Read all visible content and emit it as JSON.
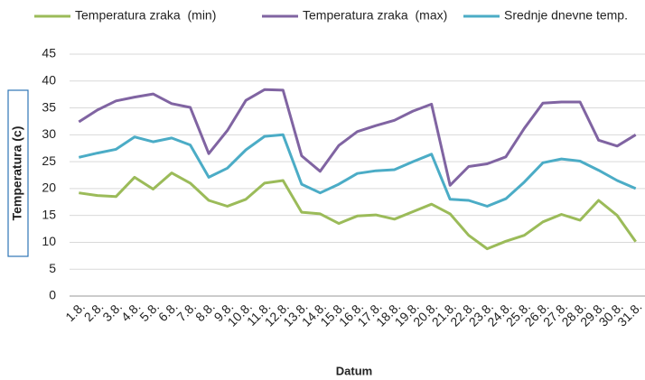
{
  "chart_data": {
    "type": "line",
    "x_label": "Datum",
    "y_label": "Temperatura (c)",
    "categories": [
      "1.8.",
      "2.8.",
      "3.8.",
      "4.8.",
      "5.8.",
      "6.8.",
      "7.8.",
      "8.8.",
      "9.8.",
      "10.8.",
      "11.8.",
      "12.8.",
      "13.8.",
      "14.8.",
      "15.8.",
      "16.8.",
      "17.8.",
      "18.8.",
      "19.8.",
      "20.8.",
      "21.8.",
      "22.8.",
      "23.8.",
      "24.8.",
      "25.8.",
      "26.8.",
      "27.8.",
      "28.8.",
      "29.8.",
      "30.8.",
      "31.8."
    ],
    "series": [
      {
        "name": "Temperatura zraka  (min)",
        "color": "#9bbb59",
        "values": [
          19.2,
          18.7,
          18.5,
          22.1,
          19.9,
          22.9,
          21.0,
          17.8,
          16.7,
          18.0,
          21.0,
          21.5,
          15.6,
          15.3,
          13.5,
          14.9,
          15.1,
          14.3,
          15.7,
          17.1,
          15.3,
          11.3,
          8.8,
          10.2,
          11.3,
          13.8,
          15.2,
          14.1,
          17.8,
          15.0,
          10.1
        ]
      },
      {
        "name": "Temperatura zraka  (max)",
        "color": "#8064a2",
        "values": [
          32.4,
          34.6,
          36.3,
          37.0,
          37.6,
          35.8,
          35.1,
          26.5,
          30.8,
          36.4,
          38.4,
          38.3,
          26.1,
          23.2,
          28.0,
          30.6,
          31.7,
          32.7,
          34.4,
          35.7,
          20.6,
          24.1,
          24.6,
          25.9,
          31.2,
          35.9,
          36.1,
          36.1,
          29.0,
          27.9,
          30.0
        ]
      },
      {
        "name": "Srednje dnevne temp.",
        "color": "#4bacc6",
        "values": [
          25.8,
          26.6,
          27.3,
          29.6,
          28.7,
          29.4,
          28.1,
          22.1,
          23.8,
          27.2,
          29.7,
          30.0,
          20.8,
          19.2,
          20.8,
          22.8,
          23.3,
          23.5,
          25.0,
          26.4,
          18.0,
          17.8,
          16.7,
          18.1,
          21.2,
          24.8,
          25.5,
          25.1,
          23.4,
          21.5,
          20.0
        ]
      }
    ],
    "ylim": [
      0,
      45
    ],
    "yticks": [
      0,
      5,
      10,
      15,
      20,
      25,
      30,
      35,
      40,
      45
    ],
    "grid": true,
    "legend": "top"
  }
}
